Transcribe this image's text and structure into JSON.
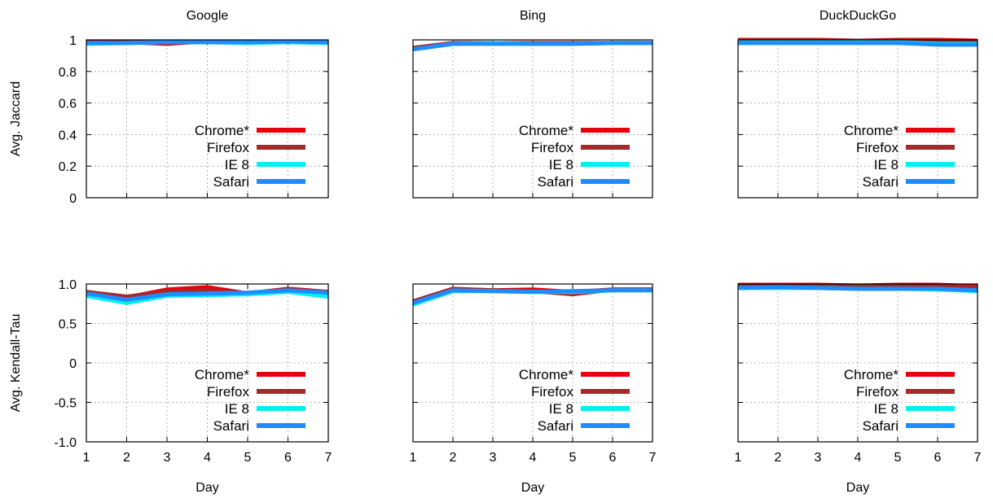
{
  "chart_data": [
    {
      "type": "line",
      "title": "Google",
      "xlabel": "",
      "ylabel": "Avg. Jaccard",
      "x": [
        1,
        2,
        3,
        4,
        5,
        6,
        7
      ],
      "xlim": [
        1,
        7
      ],
      "ylim": [
        0,
        1
      ],
      "yticks": [
        "0",
        "0.2",
        "0.4",
        "0.6",
        "0.8",
        "1"
      ],
      "ytick_values": [
        0,
        0.2,
        0.4,
        0.6,
        0.8,
        1
      ],
      "show_xtick_labels": false,
      "grid": true,
      "legend_position": "bottom-right",
      "series": [
        {
          "name": "Chrome*",
          "color": "#e8000b",
          "values": [
            0.99,
            0.985,
            0.975,
            0.99,
            0.985,
            0.99,
            0.99
          ]
        },
        {
          "name": "Firefox",
          "color": "#a52a2a",
          "values": [
            0.985,
            0.985,
            0.99,
            0.985,
            0.99,
            0.99,
            0.985
          ]
        },
        {
          "name": "IE 8",
          "color": "#00f0f0",
          "values": [
            0.975,
            0.98,
            0.985,
            0.985,
            0.98,
            0.985,
            0.98
          ]
        },
        {
          "name": "Safari",
          "color": "#1e8cff",
          "values": [
            0.98,
            0.98,
            0.985,
            0.985,
            0.985,
            0.99,
            0.985
          ]
        }
      ]
    },
    {
      "type": "line",
      "title": "Bing",
      "xlabel": "",
      "ylabel": "",
      "x": [
        1,
        2,
        3,
        4,
        5,
        6,
        7
      ],
      "xlim": [
        1,
        7
      ],
      "ylim": [
        0,
        1
      ],
      "yticks": [],
      "ytick_values": [
        0,
        0.2,
        0.4,
        0.6,
        0.8,
        1
      ],
      "show_xtick_labels": false,
      "grid": true,
      "legend_position": "bottom-right",
      "series": [
        {
          "name": "Chrome*",
          "color": "#e8000b",
          "values": [
            0.945,
            0.98,
            0.98,
            0.98,
            0.98,
            0.98,
            0.98
          ]
        },
        {
          "name": "Firefox",
          "color": "#a52a2a",
          "values": [
            0.95,
            0.98,
            0.98,
            0.975,
            0.98,
            0.98,
            0.98
          ]
        },
        {
          "name": "IE 8",
          "color": "#00f0f0",
          "values": [
            0.94,
            0.975,
            0.98,
            0.975,
            0.975,
            0.98,
            0.98
          ]
        },
        {
          "name": "Safari",
          "color": "#1e8cff",
          "values": [
            0.94,
            0.975,
            0.975,
            0.975,
            0.975,
            0.98,
            0.98
          ]
        }
      ]
    },
    {
      "type": "line",
      "title": "DuckDuckGo",
      "xlabel": "",
      "ylabel": "",
      "x": [
        1,
        2,
        3,
        4,
        5,
        6,
        7
      ],
      "xlim": [
        1,
        7
      ],
      "ylim": [
        0,
        1
      ],
      "yticks": [],
      "ytick_values": [
        0,
        0.2,
        0.4,
        0.6,
        0.8,
        1
      ],
      "show_xtick_labels": false,
      "grid": true,
      "legend_position": "bottom-right",
      "series": [
        {
          "name": "Chrome*",
          "color": "#e8000b",
          "values": [
            1.0,
            1.0,
            1.0,
            0.995,
            1.0,
            1.0,
            0.995
          ]
        },
        {
          "name": "Firefox",
          "color": "#a52a2a",
          "values": [
            0.995,
            0.995,
            0.995,
            0.995,
            0.995,
            0.995,
            0.99
          ]
        },
        {
          "name": "IE 8",
          "color": "#00f0f0",
          "values": [
            0.985,
            0.985,
            0.985,
            0.985,
            0.985,
            0.975,
            0.975
          ]
        },
        {
          "name": "Safari",
          "color": "#1e8cff",
          "values": [
            0.98,
            0.98,
            0.98,
            0.98,
            0.98,
            0.97,
            0.97
          ]
        }
      ]
    },
    {
      "type": "line",
      "title": "",
      "xlabel": "Day",
      "ylabel": "Avg. Kendall-Tau",
      "x": [
        1,
        2,
        3,
        4,
        5,
        6,
        7
      ],
      "xlim": [
        1,
        7
      ],
      "ylim": [
        -1,
        1
      ],
      "yticks": [
        "-1.0",
        "-0.5",
        "0",
        "0.5",
        "1.0"
      ],
      "ytick_values": [
        -1,
        -0.5,
        0,
        0.5,
        1
      ],
      "show_xtick_labels": true,
      "xticks": [
        "1",
        "2",
        "3",
        "4",
        "5",
        "6",
        "7"
      ],
      "grid": true,
      "legend_position": "bottom-right",
      "series": [
        {
          "name": "Chrome*",
          "color": "#e8000b",
          "values": [
            0.9,
            0.83,
            0.93,
            0.96,
            0.88,
            0.94,
            0.9
          ]
        },
        {
          "name": "Firefox",
          "color": "#a52a2a",
          "values": [
            0.9,
            0.84,
            0.9,
            0.92,
            0.88,
            0.93,
            0.9
          ]
        },
        {
          "name": "IE 8",
          "color": "#00f0f0",
          "values": [
            0.85,
            0.76,
            0.85,
            0.86,
            0.87,
            0.9,
            0.84
          ]
        },
        {
          "name": "Safari",
          "color": "#1e8cff",
          "values": [
            0.88,
            0.8,
            0.87,
            0.88,
            0.89,
            0.92,
            0.89
          ]
        }
      ]
    },
    {
      "type": "line",
      "title": "",
      "xlabel": "Day",
      "ylabel": "",
      "x": [
        1,
        2,
        3,
        4,
        5,
        6,
        7
      ],
      "xlim": [
        1,
        7
      ],
      "ylim": [
        -1,
        1
      ],
      "yticks": [],
      "ytick_values": [
        -1,
        -0.5,
        0,
        0.5,
        1
      ],
      "show_xtick_labels": true,
      "xticks": [
        "1",
        "2",
        "3",
        "4",
        "5",
        "6",
        "7"
      ],
      "grid": true,
      "legend_position": "bottom-right",
      "series": [
        {
          "name": "Chrome*",
          "color": "#e8000b",
          "values": [
            0.77,
            0.93,
            0.92,
            0.93,
            0.9,
            0.93,
            0.93
          ]
        },
        {
          "name": "Firefox",
          "color": "#a52a2a",
          "values": [
            0.78,
            0.94,
            0.92,
            0.91,
            0.87,
            0.93,
            0.93
          ]
        },
        {
          "name": "IE 8",
          "color": "#00f0f0",
          "values": [
            0.74,
            0.91,
            0.91,
            0.9,
            0.9,
            0.92,
            0.92
          ]
        },
        {
          "name": "Safari",
          "color": "#1e8cff",
          "values": [
            0.76,
            0.92,
            0.91,
            0.9,
            0.91,
            0.92,
            0.92
          ]
        }
      ]
    },
    {
      "type": "line",
      "title": "",
      "xlabel": "Day",
      "ylabel": "",
      "x": [
        1,
        2,
        3,
        4,
        5,
        6,
        7
      ],
      "xlim": [
        1,
        7
      ],
      "ylim": [
        -1,
        1
      ],
      "yticks": [],
      "ytick_values": [
        -1,
        -0.5,
        0,
        0.5,
        1
      ],
      "show_xtick_labels": true,
      "xticks": [
        "1",
        "2",
        "3",
        "4",
        "5",
        "6",
        "7"
      ],
      "grid": true,
      "legend_position": "bottom-right",
      "series": [
        {
          "name": "Chrome*",
          "color": "#e8000b",
          "values": [
            0.99,
            0.99,
            0.99,
            0.98,
            0.99,
            0.99,
            0.97
          ]
        },
        {
          "name": "Firefox",
          "color": "#a52a2a",
          "values": [
            0.98,
            0.98,
            0.98,
            0.97,
            0.97,
            0.97,
            0.96
          ]
        },
        {
          "name": "IE 8",
          "color": "#00f0f0",
          "values": [
            0.95,
            0.95,
            0.95,
            0.94,
            0.94,
            0.93,
            0.91
          ]
        },
        {
          "name": "Safari",
          "color": "#1e8cff",
          "values": [
            0.95,
            0.96,
            0.95,
            0.94,
            0.94,
            0.94,
            0.92
          ]
        }
      ]
    }
  ]
}
